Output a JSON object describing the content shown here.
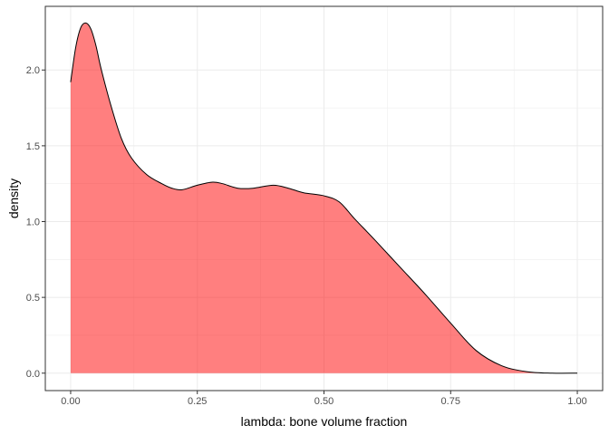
{
  "chart_data": {
    "type": "area",
    "title": "",
    "xlabel": "lambda: bone volume fraction",
    "ylabel": "density",
    "xlim": [
      -0.05,
      1.05
    ],
    "ylim": [
      -0.115,
      2.42
    ],
    "grid": true,
    "legend": "none",
    "colors": {
      "fill": "#FF0000",
      "fill_opacity": 0.5,
      "line": "#000000",
      "grid": "#EBEBEB",
      "panel_border": "#333333"
    },
    "x_ticks": [
      {
        "value": 0,
        "label": "0.00"
      },
      {
        "value": 0.25,
        "label": "0.25"
      },
      {
        "value": 0.5,
        "label": "0.50"
      },
      {
        "value": 0.75,
        "label": "0.75"
      },
      {
        "value": 1,
        "label": "1.00"
      }
    ],
    "y_ticks": [
      {
        "value": 0,
        "label": "0.0"
      },
      {
        "value": 0.5,
        "label": "0.5"
      },
      {
        "value": 1,
        "label": "1.0"
      },
      {
        "value": 1.5,
        "label": "1.5"
      },
      {
        "value": 2,
        "label": "2.0"
      }
    ],
    "x": [
      0,
      0.01,
      0.02,
      0.03,
      0.04,
      0.05,
      0.06,
      0.08,
      0.1,
      0.12,
      0.15,
      0.18,
      0.2,
      0.22,
      0.25,
      0.28,
      0.3,
      0.33,
      0.36,
      0.4,
      0.43,
      0.46,
      0.5,
      0.53,
      0.56,
      0.6,
      0.65,
      0.7,
      0.75,
      0.8,
      0.85,
      0.9,
      0.95,
      1.0
    ],
    "y": [
      1.92,
      2.15,
      2.28,
      2.31,
      2.27,
      2.16,
      2.01,
      1.76,
      1.55,
      1.42,
      1.31,
      1.25,
      1.22,
      1.21,
      1.24,
      1.26,
      1.25,
      1.22,
      1.22,
      1.24,
      1.22,
      1.19,
      1.17,
      1.13,
      1.02,
      0.88,
      0.7,
      0.52,
      0.33,
      0.15,
      0.05,
      0.01,
      0.0,
      0.0
    ]
  }
}
